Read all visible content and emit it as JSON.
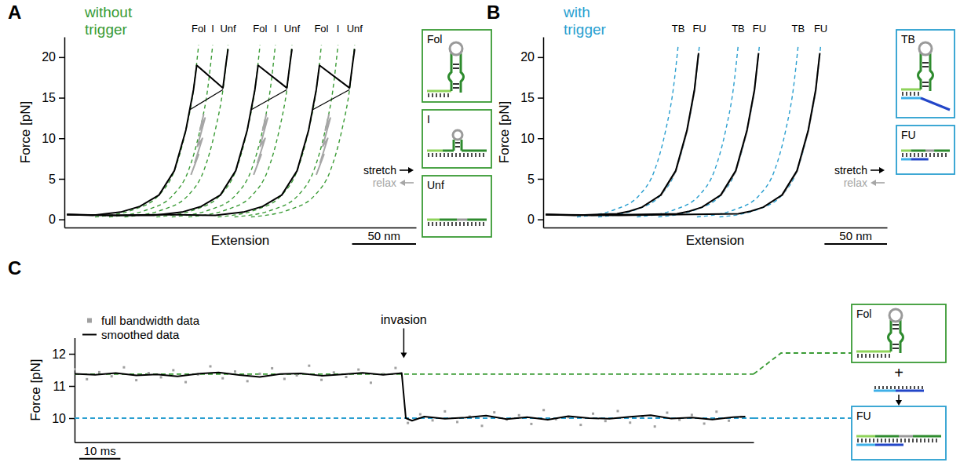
{
  "chart_data": [
    {
      "type": "line",
      "panel": "A",
      "title": "without trigger",
      "x_label": "Extension",
      "y_label": "Force [pN]",
      "xlim": [
        0,
        275
      ],
      "ylim": [
        -1,
        22.5
      ],
      "yticks": [
        0,
        5,
        10,
        15,
        20
      ],
      "tick_labels": "y",
      "legend": "right",
      "scale_bar": {
        "value": 50,
        "label": "50 nm"
      },
      "series": [
        {
          "name": "Fol",
          "color": "#3a9b35",
          "line_style": "dashed",
          "x": [
            24,
            54,
            74,
            86,
            95,
            101,
            105
          ],
          "values": [
            0.3,
            1.2,
            3,
            6,
            11,
            16,
            21.5
          ]
        },
        {
          "name": "I",
          "color": "#3a9b35",
          "line_style": "dashed",
          "x": [
            35,
            65,
            85,
            97,
            106,
            112,
            116
          ],
          "values": [
            0.3,
            1.2,
            3,
            6,
            11,
            16,
            21.5
          ]
        },
        {
          "name": "Unf",
          "color": "#3a9b35",
          "line_style": "dashed",
          "x": [
            47,
            77,
            97,
            109,
            118,
            124,
            128
          ],
          "values": [
            0.3,
            1.2,
            3,
            6,
            11,
            16,
            21.5
          ]
        },
        {
          "name": "Fol",
          "color": "#3a9b35",
          "line_style": "dashed",
          "x": [
            72,
            102,
            122,
            134,
            143,
            149,
            153
          ],
          "values": [
            0.3,
            1.2,
            3,
            6,
            11,
            16,
            21.5
          ]
        },
        {
          "name": "I",
          "color": "#3a9b35",
          "line_style": "dashed",
          "x": [
            84,
            114,
            134,
            146,
            155,
            161,
            165
          ],
          "values": [
            0.3,
            1.2,
            3,
            6,
            11,
            16,
            21.5
          ]
        },
        {
          "name": "Unf",
          "color": "#3a9b35",
          "line_style": "dashed",
          "x": [
            97,
            127,
            147,
            159,
            168,
            174,
            178
          ],
          "values": [
            0.3,
            1.2,
            3,
            6,
            11,
            16,
            21.5
          ]
        },
        {
          "name": "Fol",
          "color": "#3a9b35",
          "line_style": "dashed",
          "x": [
            120,
            150,
            170,
            182,
            191,
            197,
            201
          ],
          "values": [
            0.3,
            1.2,
            3,
            6,
            11,
            16,
            21.5
          ]
        },
        {
          "name": "I",
          "color": "#3a9b35",
          "line_style": "dashed",
          "x": [
            133,
            163,
            183,
            195,
            204,
            210,
            214
          ],
          "values": [
            0.3,
            1.2,
            3,
            6,
            11,
            16,
            21.5
          ]
        },
        {
          "name": "Unf",
          "color": "#3a9b35",
          "line_style": "dashed",
          "x": [
            146,
            176,
            196,
            208,
            217,
            223,
            227
          ],
          "values": [
            0.3,
            1.2,
            3,
            6,
            11,
            16,
            21.5
          ]
        },
        {
          "name": "stretch",
          "color": "#000000",
          "line_style": "solid",
          "marker": "arrow-right",
          "x": [
            2,
            22,
            44,
            59,
            74,
            86,
            95,
            101,
            103.5,
            124,
            126.5,
            128
          ],
          "values": [
            0.6,
            0.5,
            0.9,
            1.6,
            3,
            6,
            11,
            16,
            19,
            16.2,
            19.3,
            21
          ]
        },
        {
          "name": "stretch",
          "color": "#000000",
          "line_style": "solid",
          "marker": "arrow-right",
          "x": [
            2,
            35,
            70,
            92,
            107,
            122,
            134,
            143,
            149,
            151.5,
            174,
            176.5,
            178
          ],
          "values": [
            0.6,
            0.5,
            0.5,
            0.9,
            1.6,
            3,
            6,
            11,
            16,
            19,
            16.2,
            19.3,
            21
          ]
        },
        {
          "name": "stretch",
          "color": "#000000",
          "line_style": "solid",
          "marker": "arrow-right",
          "x": [
            2,
            40,
            80,
            118,
            140,
            155,
            170,
            182,
            191,
            197,
            199.5,
            223,
            225.5,
            227
          ],
          "values": [
            0.6,
            0.5,
            0.6,
            0.5,
            0.9,
            1.6,
            3,
            6,
            11,
            16,
            19,
            16.2,
            19.3,
            21
          ]
        },
        {
          "name": "relax",
          "color": "#a6a6a6",
          "line_style": "solid",
          "marker": "arrow-left",
          "x": [
            109,
            106,
            110,
            104,
            108,
            102,
            105,
            99
          ],
          "values": [
            13,
            11,
            12.5,
            9,
            10,
            7,
            8,
            5.5
          ]
        },
        {
          "name": "relax",
          "color": "#a6a6a6",
          "line_style": "solid",
          "marker": "arrow-left",
          "x": [
            158,
            155,
            159,
            153,
            157,
            151,
            154,
            148
          ],
          "values": [
            13,
            11,
            12.5,
            9,
            10,
            7,
            8,
            5.5
          ]
        },
        {
          "name": "relax",
          "color": "#a6a6a6",
          "line_style": "solid",
          "marker": "arrow-left",
          "x": [
            207,
            204,
            208,
            202,
            206,
            200,
            203,
            197
          ],
          "values": [
            13,
            11,
            12.5,
            9,
            10,
            7,
            8,
            5.5
          ]
        }
      ],
      "distance_markers": [
        {
          "x": [
            98,
            124
          ],
          "values": [
            13.5,
            16
          ]
        },
        {
          "x": [
            146,
            174
          ],
          "values": [
            13.5,
            16
          ]
        },
        {
          "x": [
            194,
            223
          ],
          "values": [
            13.5,
            16
          ]
        }
      ],
      "insets": [
        {
          "label": "Fol",
          "type": "hairpin",
          "color": "#3a9b35"
        },
        {
          "label": "I",
          "type": "intermediate",
          "color": "#3a9b35"
        },
        {
          "label": "Unf",
          "type": "unfolded",
          "color": "#3a9b35"
        }
      ]
    },
    {
      "type": "line",
      "panel": "B",
      "title": "with trigger",
      "x_label": "Extension",
      "y_label": "Force [pN]",
      "xlim": [
        0,
        275
      ],
      "ylim": [
        -1,
        22.5
      ],
      "yticks": [
        0,
        5,
        10,
        15,
        20
      ],
      "tick_labels": "y",
      "legend": "right",
      "scale_bar": {
        "value": 50,
        "label": "50 nm"
      },
      "series": [
        {
          "name": "TB",
          "color": "#2a9fd0",
          "line_style": "dashed",
          "x": [
            27,
            57,
            77,
            89,
            98,
            104,
            108
          ],
          "values": [
            0.3,
            1.2,
            3,
            6,
            11,
            16,
            21.5
          ]
        },
        {
          "name": "FU",
          "color": "#2a9fd0",
          "line_style": "dashed",
          "x": [
            44,
            74,
            94,
            106,
            115,
            121,
            125
          ],
          "values": [
            0.3,
            1.2,
            3,
            6,
            11,
            16,
            21.5
          ]
        },
        {
          "name": "TB",
          "color": "#2a9fd0",
          "line_style": "dashed",
          "x": [
            75,
            105,
            125,
            137,
            146,
            152,
            156
          ],
          "values": [
            0.3,
            1.2,
            3,
            6,
            11,
            16,
            21.5
          ]
        },
        {
          "name": "FU",
          "color": "#2a9fd0",
          "line_style": "dashed",
          "x": [
            92,
            122,
            142,
            154,
            163,
            169,
            173
          ],
          "values": [
            0.3,
            1.2,
            3,
            6,
            11,
            16,
            21.5
          ]
        },
        {
          "name": "TB",
          "color": "#2a9fd0",
          "line_style": "dashed",
          "x": [
            123,
            153,
            173,
            185,
            194,
            200,
            204
          ],
          "values": [
            0.3,
            1.2,
            3,
            6,
            11,
            16,
            21.5
          ]
        },
        {
          "name": "FU",
          "color": "#2a9fd0",
          "line_style": "dashed",
          "x": [
            141,
            171,
            191,
            203,
            212,
            218,
            222
          ],
          "values": [
            0.3,
            1.2,
            3,
            6,
            11,
            16,
            21.5
          ]
        },
        {
          "name": "relax",
          "color": "#a6a6a6",
          "line_style": "solid",
          "marker": "arrow-left",
          "x": [
            124,
            121,
            115,
            106,
            94
          ],
          "values": [
            20.3,
            15.8,
            10.8,
            5.9,
            2.9
          ]
        },
        {
          "name": "relax",
          "color": "#a6a6a6",
          "line_style": "solid",
          "marker": "arrow-left",
          "x": [
            172,
            169,
            163,
            154,
            142
          ],
          "values": [
            20.3,
            15.8,
            10.8,
            5.9,
            2.9
          ]
        },
        {
          "name": "relax",
          "color": "#a6a6a6",
          "line_style": "solid",
          "marker": "arrow-left",
          "x": [
            221,
            218,
            212,
            203,
            191
          ],
          "values": [
            20.3,
            15.8,
            10.8,
            5.9,
            2.9
          ]
        },
        {
          "name": "stretch",
          "color": "#000000",
          "line_style": "solid",
          "marker": "arrow-right",
          "x": [
            2,
            25,
            59,
            69,
            79,
            94,
            106,
            115,
            121,
            124.3
          ],
          "values": [
            0.6,
            0.5,
            0.7,
            1.0,
            1.5,
            3,
            6,
            11,
            16,
            20.5
          ]
        },
        {
          "name": "stretch",
          "color": "#000000",
          "line_style": "solid",
          "marker": "arrow-right",
          "x": [
            2,
            40,
            107,
            117,
            127,
            142,
            154,
            163,
            169,
            172.3
          ],
          "values": [
            0.6,
            0.5,
            0.7,
            1.0,
            1.5,
            3,
            6,
            11,
            16,
            20.5
          ]
        },
        {
          "name": "stretch",
          "color": "#000000",
          "line_style": "solid",
          "marker": "arrow-right",
          "x": [
            2,
            60,
            156,
            166,
            176,
            191,
            203,
            212,
            218,
            221.3
          ],
          "values": [
            0.6,
            0.5,
            0.7,
            1.0,
            1.5,
            3,
            6,
            11,
            16,
            20.5
          ]
        }
      ],
      "insets": [
        {
          "label": "TB",
          "type": "bound",
          "color": "#2a9fd0"
        },
        {
          "label": "FU",
          "type": "hybrid",
          "color": "#2a9fd0"
        }
      ]
    },
    {
      "type": "line",
      "panel": "C",
      "y_label": "Force [pN]",
      "xlim": [
        0,
        165
      ],
      "ylim": [
        9.25,
        12.5
      ],
      "yticks": [
        10,
        11,
        12
      ],
      "tick_labels": "y",
      "legend": "upper left",
      "scale_bar": {
        "value": 10,
        "label": "10 ms"
      },
      "series": [
        {
          "name": "full bandwidth data",
          "type": "scatter",
          "marker": "square",
          "color": "#a0a0a0",
          "x": [
            0,
            3,
            6,
            9,
            12,
            15,
            18,
            21,
            24,
            27,
            30,
            33,
            36,
            39,
            42,
            45,
            48,
            51,
            54,
            57,
            60,
            63,
            66,
            69,
            72,
            75,
            78,
            81,
            84,
            87,
            90,
            93,
            96,
            99,
            102,
            105,
            108,
            111,
            114,
            117,
            120,
            123,
            126,
            129,
            132,
            135,
            138,
            141,
            144,
            147,
            150,
            153,
            156,
            159,
            162
          ],
          "values": [
            11.52,
            11.21,
            11.43,
            11.3,
            11.58,
            11.18,
            11.4,
            11.27,
            11.49,
            11.12,
            11.36,
            11.61,
            11.24,
            11.45,
            11.15,
            11.38,
            11.55,
            11.22,
            11.33,
            11.63,
            11.19,
            11.42,
            11.28,
            11.51,
            11.1,
            11.37,
            11.56,
            9.85,
            10.12,
            9.93,
            10.21,
            9.88,
            10.05,
            9.76,
            10.18,
            9.96,
            10.09,
            9.82,
            10.25,
            9.97,
            10.03,
            9.79,
            10.14,
            9.91,
            10.22,
            9.86,
            10.06,
            9.74,
            10.17,
            9.95,
            10.1,
            9.83,
            10.2,
            9.92,
            10.04
          ]
        },
        {
          "name": "smoothed data",
          "type": "line",
          "line_style": "solid",
          "color": "#000000",
          "x": [
            0,
            5,
            10,
            15,
            20,
            25,
            30,
            35,
            40,
            45,
            50,
            55,
            60,
            65,
            70,
            75,
            79.5,
            80.5,
            82,
            85,
            90,
            95,
            100,
            105,
            110,
            115,
            120,
            125,
            130,
            135,
            140,
            145,
            150,
            155,
            160,
            163
          ],
          "values": [
            11.38,
            11.35,
            11.4,
            11.33,
            11.36,
            11.3,
            11.38,
            11.42,
            11.34,
            11.28,
            11.37,
            11.39,
            11.32,
            11.36,
            11.41,
            11.35,
            11.4,
            10.0,
            9.92,
            10.05,
            9.98,
            10.02,
            10.08,
            9.97,
            10.03,
            9.95,
            10.06,
            10.0,
            9.98,
            10.04,
            10.09,
            9.99,
            10.02,
            9.96,
            10.03,
            10.05
          ]
        }
      ],
      "annotations": [
        {
          "text": "invasion",
          "x": 80
        }
      ],
      "reference_lines": [
        {
          "value": 11.37,
          "color": "#3a9b35",
          "line_style": "dashed"
        },
        {
          "value": 10,
          "color": "#2a9fd0",
          "line_style": "dashed"
        }
      ],
      "insets": [
        {
          "label": "Fol",
          "type": "hairpin",
          "color": "#3a9b35"
        },
        {
          "label": "FU",
          "type": "hybrid",
          "color": "#2a9fd0"
        }
      ],
      "operator": "+"
    }
  ]
}
